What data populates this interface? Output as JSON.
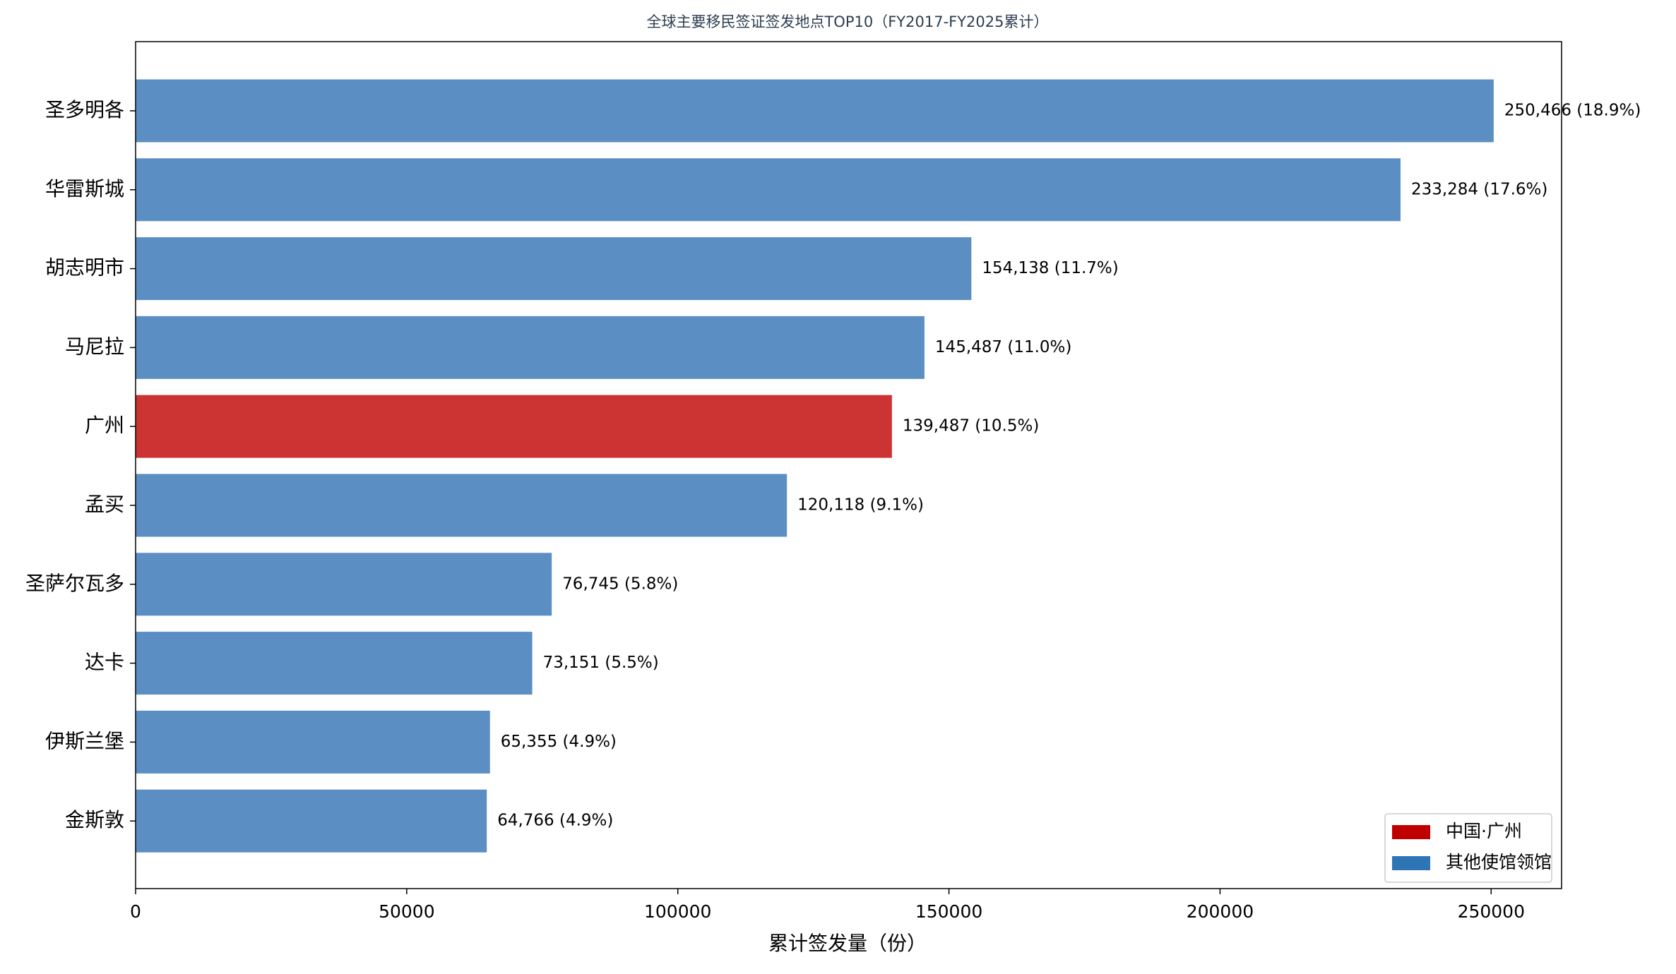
{
  "chart_data": {
    "type": "barh",
    "title": "全球主要移民签证签发地点TOP10（FY2017-FY2025累计）",
    "xlabel": "累计签发量（份）",
    "categories": [
      "圣多明各",
      "华雷斯城",
      "胡志明市",
      "马尼拉",
      "广州",
      "孟买",
      "圣萨尔瓦多",
      "达卡",
      "伊斯兰堡",
      "金斯敦"
    ],
    "values": [
      250466,
      233284,
      154138,
      145487,
      139487,
      120118,
      76745,
      73151,
      65355,
      64766
    ],
    "value_labels": [
      "250,466 (18.9%)",
      "233,284 (17.6%)",
      "154,138 (11.7%)",
      "145,487 (11.0%)",
      "139,487 (10.5%)",
      "120,118 (9.1%)",
      "76,745 (5.8%)",
      "73,151 (5.5%)",
      "65,355 (4.9%)",
      "64,766 (4.9%)"
    ],
    "colors": [
      "#5b8fc3",
      "#5b8fc3",
      "#5b8fc3",
      "#5b8fc3",
      "#cc3333",
      "#5b8fc3",
      "#5b8fc3",
      "#5b8fc3",
      "#5b8fc3",
      "#5b8fc3"
    ],
    "legend": [
      {
        "name": "中国·广州",
        "color": "#c00000"
      },
      {
        "name": "其他使馆领馆",
        "color": "#2e75b6"
      }
    ],
    "legend_loc": "lower right",
    "xlim": [
      0,
      262989
    ],
    "xticks": [
      0,
      50000,
      100000,
      150000,
      200000,
      250000
    ]
  }
}
